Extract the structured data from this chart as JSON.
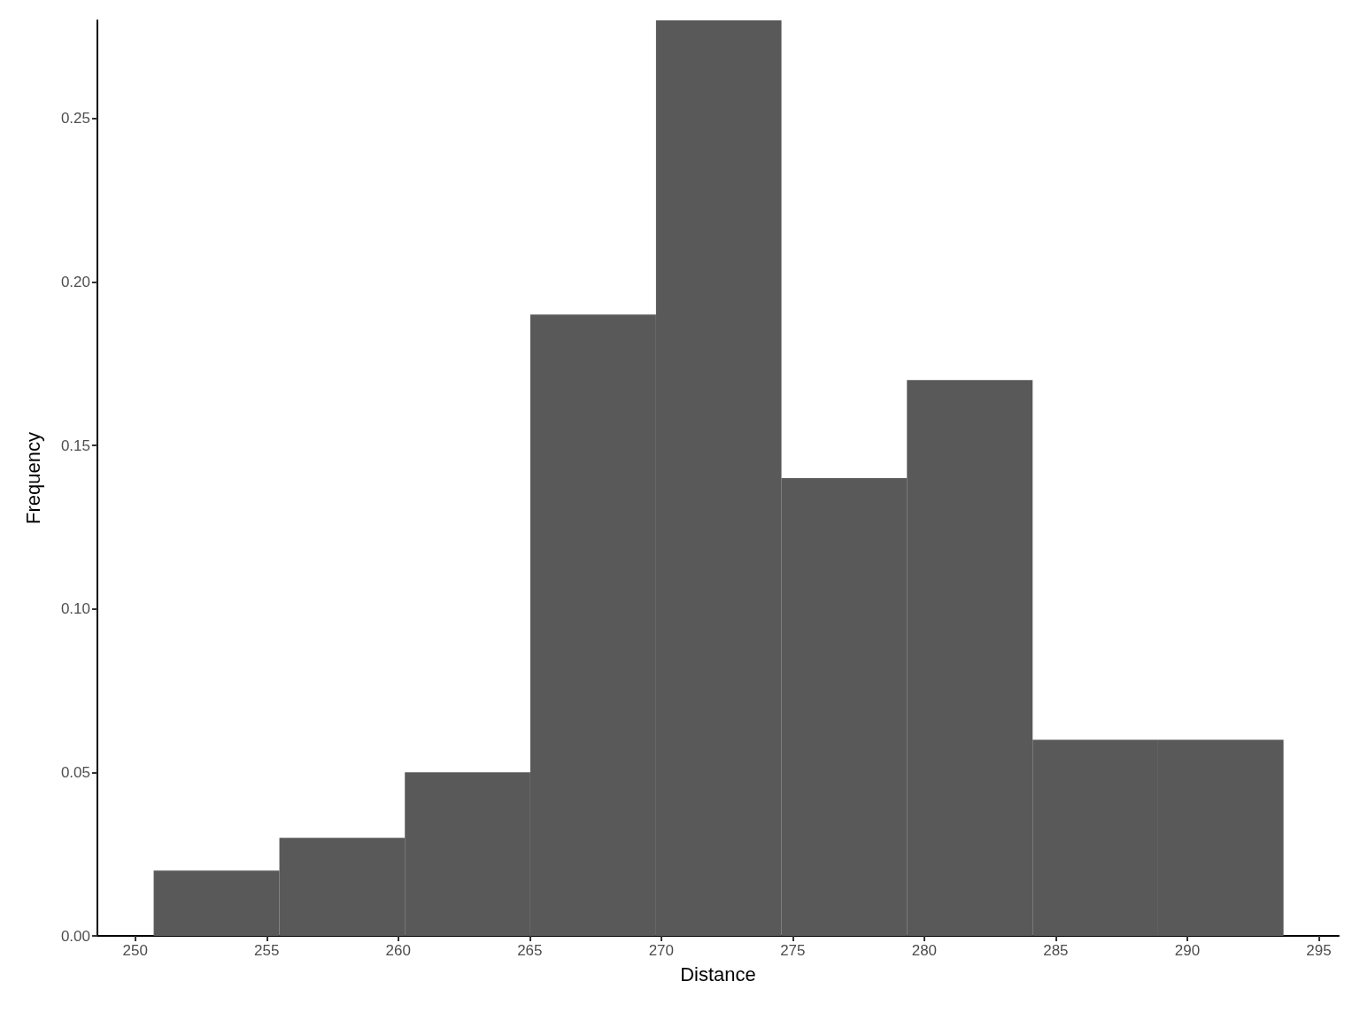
{
  "chart_data": {
    "type": "histogram",
    "xlabel": "Distance",
    "ylabel": "Frequency",
    "color": "#595959",
    "bins": [
      250.7,
      255.48,
      260.25,
      265.02,
      269.8,
      274.57,
      279.34,
      284.12,
      288.89,
      293.66
    ],
    "values": [
      0.02,
      0.03,
      0.05,
      0.19,
      0.28,
      0.14,
      0.17,
      0.06,
      0.06
    ],
    "xlim": [
      248.56,
      295.76
    ],
    "ylim": [
      0,
      0.28
    ],
    "xticks": [
      250,
      255,
      260,
      265,
      270,
      275,
      280,
      285,
      290,
      295
    ],
    "yticks": [
      {
        "value": 0,
        "label": "0.00"
      },
      {
        "value": 0.05,
        "label": "0.05"
      },
      {
        "value": 0.1,
        "label": "0.10"
      },
      {
        "value": 0.15,
        "label": "0.15"
      },
      {
        "value": 0.2,
        "label": "0.20"
      },
      {
        "value": 0.25,
        "label": "0.25"
      }
    ],
    "grid": false
  }
}
